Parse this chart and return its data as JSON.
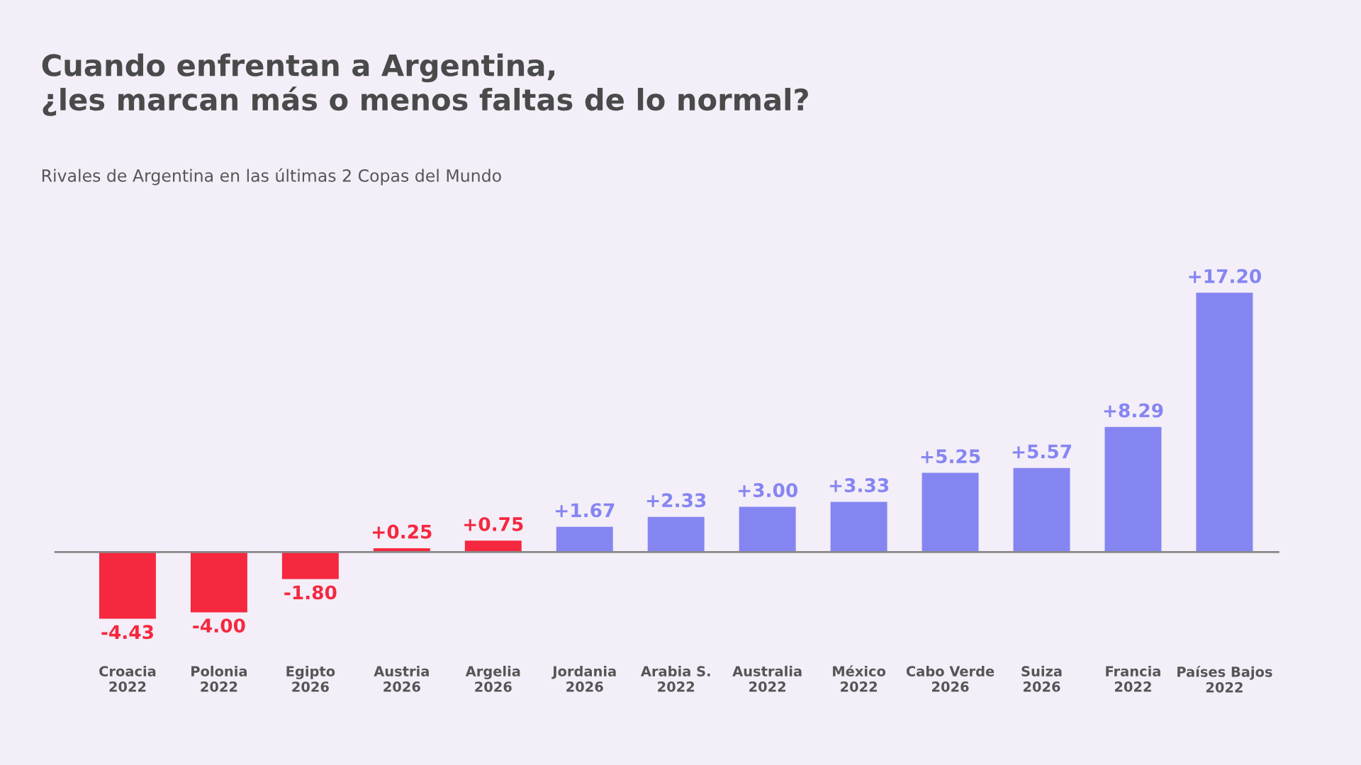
{
  "chart_data": {
    "type": "bar",
    "title": "Cuando enfrentan a Argentina,\n¿les marcan más o menos faltas de lo normal?",
    "subtitle": "Rivales de Argentina en las últimas 2 Copas del Mundo",
    "categories": [
      "Croacia\n2022",
      "Polonia\n2022",
      "Egipto\n2026",
      "Austria\n2026",
      "Argelia\n2026",
      "Jordania\n2026",
      "Arabia S.\n2022",
      "Australia\n2022",
      "México\n2022",
      "Cabo Verde\n2026",
      "Suiza\n2026",
      "Francia\n2022",
      "Países Bajos\n2022"
    ],
    "values": [
      -4.43,
      -4.0,
      -1.8,
      0.25,
      0.75,
      1.67,
      2.33,
      3.0,
      3.33,
      5.25,
      5.57,
      8.29,
      17.2
    ],
    "value_labels": [
      "-4.43",
      "-4.00",
      "-1.80",
      "+0.25",
      "+0.75",
      "+1.67",
      "+2.33",
      "+3.00",
      "+3.33",
      "+5.25",
      "+5.57",
      "+8.29",
      "+17.20"
    ],
    "colors": [
      "#f5283f",
      "#f5283f",
      "#f5283f",
      "#f5283f",
      "#f5283f",
      "#8585f2",
      "#8585f2",
      "#8585f2",
      "#8585f2",
      "#8585f2",
      "#8585f2",
      "#8585f2",
      "#8585f2"
    ],
    "grid": false,
    "legend": false
  }
}
